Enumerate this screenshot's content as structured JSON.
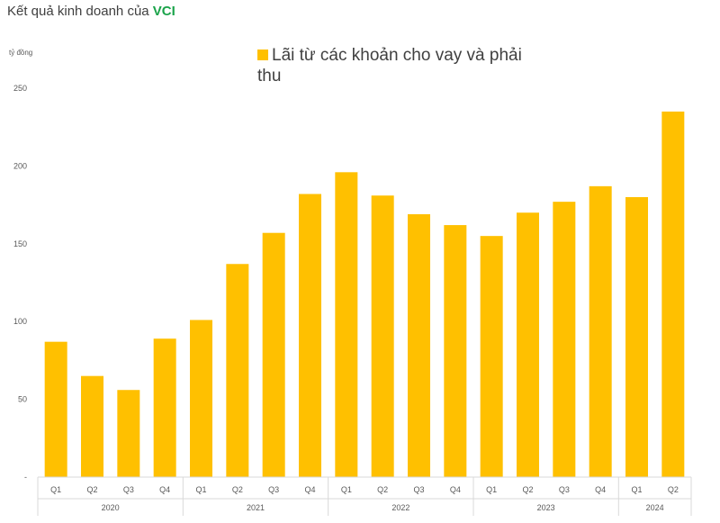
{
  "header": {
    "title_prefix": "Kết quả kinh doanh của ",
    "title_brand": "VCI",
    "brand_color": "#1aa34a"
  },
  "chart_data": {
    "type": "bar",
    "unit_label": "tỷ đồng",
    "legend": [
      {
        "label": "Lãi từ các khoản cho vay và phải thu",
        "color": "#ffc000"
      }
    ],
    "series": [
      {
        "name": "Lãi từ các khoản cho vay và phải thu",
        "color": "#ffc000",
        "values": [
          87,
          65,
          56,
          89,
          101,
          137,
          157,
          182,
          196,
          181,
          169,
          162,
          155,
          170,
          177,
          187,
          180,
          235
        ]
      }
    ],
    "categories": [
      "Q1",
      "Q2",
      "Q3",
      "Q4",
      "Q1",
      "Q2",
      "Q3",
      "Q4",
      "Q1",
      "Q2",
      "Q3",
      "Q4",
      "Q1",
      "Q2",
      "Q3",
      "Q4",
      "Q1",
      "Q2"
    ],
    "groups": [
      {
        "label": "2020",
        "count": 4
      },
      {
        "label": "2021",
        "count": 4
      },
      {
        "label": "2022",
        "count": 4
      },
      {
        "label": "2023",
        "count": 4
      },
      {
        "label": "2024",
        "count": 2
      }
    ],
    "ylim": [
      0,
      250
    ],
    "yticks": [
      {
        "value": 0,
        "label": "-"
      },
      {
        "value": 50,
        "label": "50"
      },
      {
        "value": 100,
        "label": "100"
      },
      {
        "value": 150,
        "label": "150"
      },
      {
        "value": 200,
        "label": "200"
      },
      {
        "value": 250,
        "label": "250"
      }
    ],
    "grid": false,
    "legend_position": "top-center"
  }
}
